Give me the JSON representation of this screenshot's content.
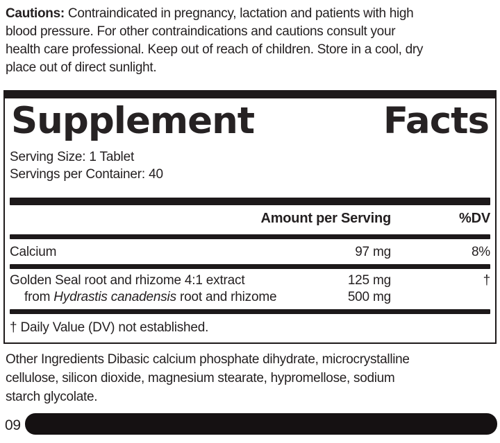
{
  "colors": {
    "ink": "#231f20",
    "background": "#ffffff",
    "bars": "#1d191a"
  },
  "cautions": {
    "label": "Cautions:",
    "line1_rest": "Contraindicated in pregnancy, lactation and patients with high",
    "line2": "blood pressure. For other contraindications and cautions consult your",
    "line3": "health care professional. Keep out of reach of children. Store in a cool, dry",
    "line4": "place out of direct sunlight."
  },
  "supplement_facts": {
    "title_word1": "Supplement",
    "title_word2": "Facts",
    "serving_size": "Serving Size: 1 Tablet",
    "servings_per_container": "Servings per Container: 40",
    "header": {
      "amount": "Amount per Serving",
      "dv": "%DV"
    },
    "rows": [
      {
        "name": "Calcium",
        "amount": "97 mg",
        "dv": "8%"
      },
      {
        "name_line1": "Golden Seal root and rhizome 4:1 extract",
        "amount_line1": "125 mg",
        "dv": "†",
        "name_line2_prefix": "from ",
        "name_line2_species": "Hydrastis canadensis",
        "name_line2_suffix": " root and rhizome",
        "amount_line2": "500 mg"
      }
    ],
    "footnote": "† Daily Value (DV) not established."
  },
  "other_ingredients": {
    "line1": "Other Ingredients Dibasic calcium phosphate dihydrate, microcrystalline",
    "line2": "cellulose, silicon dioxide, magnesium stearate, hypromellose, sodium",
    "line3": "starch glycolate."
  },
  "version_code": "09"
}
